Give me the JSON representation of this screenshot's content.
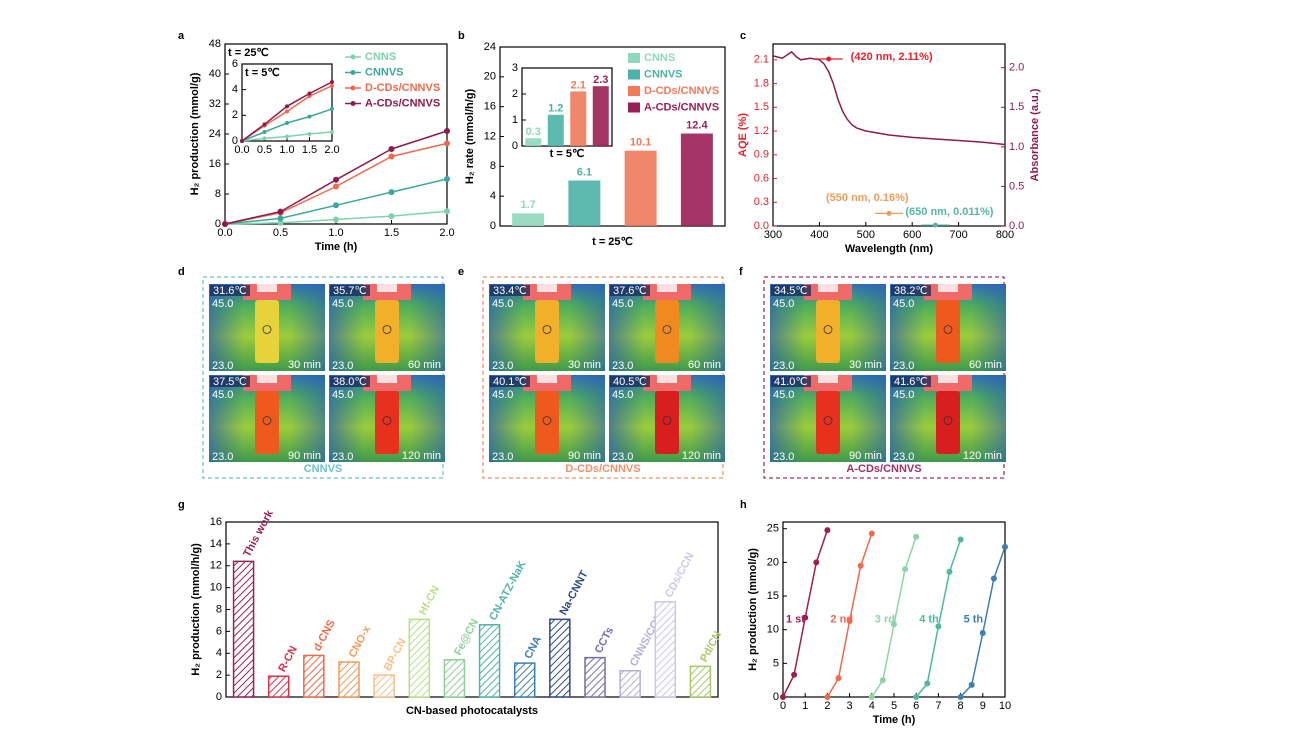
{
  "chart_data": [
    {
      "type": "line",
      "panel_label": "a",
      "annotation": "t = 25℃",
      "xlabel": "Time (h)",
      "ylabel": "H₂ production (mmol/g)",
      "x": [
        0,
        0.5,
        1,
        1.5,
        2
      ],
      "xlim": [
        0,
        2
      ],
      "xticks": [
        {
          "value": 0,
          "label": "0.0"
        },
        0.5,
        {
          "value": 1,
          "label": "1.0"
        },
        1.5,
        {
          "value": 2,
          "label": "2.0"
        }
      ],
      "ylim": [
        0,
        48
      ],
      "yticks": [
        0,
        8,
        16,
        24,
        32,
        40,
        48
      ],
      "legend": "upper right",
      "series": [
        {
          "name": "CNNS",
          "color": "#7dd3ae",
          "values": [
            0,
            0.3,
            1.2,
            2.1,
            3.4
          ]
        },
        {
          "name": "CNNVS",
          "color": "#3aa89a",
          "values": [
            0,
            1.5,
            5,
            8.5,
            12
          ]
        },
        {
          "name": "D-CDs/CNNVS",
          "color": "#ef6a4c",
          "values": [
            0,
            3,
            10,
            18,
            21.5
          ]
        },
        {
          "name": "A-CDs/CNNVS",
          "color": "#8e1b4e",
          "values": [
            0,
            3.3,
            11.8,
            20,
            24.8
          ]
        }
      ],
      "inset": {
        "annotation": "t = 5℃",
        "xlim": [
          0,
          2
        ],
        "xticks": [
          {
            "value": 0,
            "label": "0.0"
          },
          0.5,
          {
            "value": 1,
            "label": "1.0"
          },
          1.5,
          {
            "value": 2,
            "label": "2.0"
          }
        ],
        "ylim": [
          0,
          6
        ],
        "yticks": [
          0,
          2,
          4,
          6
        ],
        "series": [
          {
            "values": [
              0,
              0.2,
              0.35,
              0.55,
              0.7
            ]
          },
          {
            "values": [
              0,
              0.7,
              1.4,
              1.9,
              2.5
            ]
          },
          {
            "values": [
              0,
              1.2,
              2.3,
              3.5,
              4.3
            ]
          },
          {
            "values": [
              0,
              1.3,
              2.7,
              3.7,
              4.6
            ]
          }
        ]
      }
    },
    {
      "type": "bar",
      "panel_label": "b",
      "xlabel": "t = 25℃",
      "ylabel": "H₂ rate (mmol/h/g)",
      "ylim": [
        0,
        24
      ],
      "yticks": [
        0,
        4,
        8,
        12,
        16,
        20,
        24
      ],
      "legend": "upper right",
      "series": [
        {
          "name": "CNNS",
          "color": "#8fd8bd",
          "values": [
            1.7
          ]
        },
        {
          "name": "CNNVS",
          "color": "#4bb3a6",
          "values": [
            6.1
          ]
        },
        {
          "name": "D-CDs/CNNVS",
          "color": "#f07a5a",
          "values": [
            10.1
          ]
        },
        {
          "name": "A-CDs/CNNVS",
          "color": "#9a1f55",
          "values": [
            12.4
          ]
        }
      ],
      "inset": {
        "annotation": "t = 5℃",
        "ylim": [
          0,
          3
        ],
        "yticks": [
          0,
          1,
          2,
          3
        ],
        "values": [
          0.3,
          1.2,
          2.1,
          2.3
        ]
      }
    },
    {
      "type": "line",
      "panel_label": "c",
      "xlabel": "Wavelength (nm)",
      "ylabel": "AQE (%)",
      "y2label": "Absorbance (a.u.)",
      "y_axis_color": "#e8202a",
      "y2_axis_color": "#8e1b4e",
      "xlim": [
        300,
        800
      ],
      "xticks": [
        300,
        400,
        500,
        600,
        700,
        800
      ],
      "ylim": [
        0,
        2.3
      ],
      "yticks": [
        {
          "value": 0,
          "label": "0.0"
        },
        0.3,
        0.6,
        0.9,
        1.2,
        1.5,
        1.8,
        2.1
      ],
      "y2lim": [
        0,
        2.3
      ],
      "y2ticks": [
        {
          "value": 0,
          "label": "0.0"
        },
        0.5,
        {
          "value": 1,
          "label": "1.0"
        },
        1.5,
        {
          "value": 2,
          "label": "2.0"
        }
      ],
      "series": [
        {
          "name": "Absorbance",
          "axis": "y2",
          "color": "#8e1b4e",
          "x": [
            300,
            320,
            340,
            350,
            360,
            380,
            400,
            410,
            420,
            430,
            440,
            450,
            460,
            470,
            480,
            500,
            550,
            600,
            650,
            700,
            750,
            800
          ],
          "values": [
            2.15,
            2.12,
            2.2,
            2.14,
            2.1,
            2.12,
            2.1,
            2.05,
            1.95,
            1.8,
            1.6,
            1.45,
            1.35,
            1.28,
            1.24,
            1.2,
            1.15,
            1.12,
            1.1,
            1.08,
            1.06,
            1.03
          ]
        },
        {
          "name": "AQE",
          "style": "markers",
          "color": "#e8202a",
          "x": [
            420,
            550,
            650
          ],
          "values": [
            2.11,
            0.16,
            0.011
          ],
          "value_labels": [
            "(420 nm, 2.11%)",
            "(550 nm, 0.16%)",
            "(650 nm, 0.011%)"
          ],
          "colors": [
            "#e8202a",
            "#f29b57",
            "#56b4a9"
          ]
        }
      ]
    },
    {
      "type": "bar",
      "panel_label": "g",
      "xlabel": "CN-based photocatalysts",
      "ylabel": "H₂ production (mmol/h/g)",
      "ylim": [
        0,
        16
      ],
      "yticks": [
        0,
        2,
        4,
        6,
        8,
        10,
        12,
        14,
        16
      ],
      "hatch": true,
      "categories": [
        "This work",
        "R-CN",
        "d-CNS",
        "CNO-x",
        "BP-CN",
        "Hf-CN",
        "Fe@CN",
        "CN-ATZ-NaK",
        "CNA",
        "Na-CNNT",
        "CCTs",
        "CNNS/CQDs",
        "CDs/CCN",
        "Pd/CN"
      ],
      "values": [
        12.4,
        1.9,
        3.8,
        3.2,
        2.0,
        7.1,
        3.4,
        6.6,
        3.1,
        7.1,
        3.6,
        2.4,
        8.7,
        2.8
      ],
      "colors": [
        "#9b1f52",
        "#d8324a",
        "#ee6a48",
        "#f39a5a",
        "#f6c08a",
        "#b9e08a",
        "#8fcf9a",
        "#4fb3a6",
        "#3d7fb0",
        "#2f4a8a",
        "#7a6bb0",
        "#b9aed6",
        "#cfc6e6",
        "#a8c66a"
      ]
    },
    {
      "type": "line",
      "panel_label": "h",
      "xlabel": "Time (h)",
      "ylabel": "H₂ production (mmol/g)",
      "series_labels": "inline",
      "xlim": [
        0,
        10
      ],
      "xticks": [
        0,
        1,
        2,
        3,
        4,
        5,
        6,
        7,
        8,
        9,
        10
      ],
      "ylim": [
        0,
        26
      ],
      "yticks": [
        0,
        5,
        10,
        15,
        20,
        25
      ],
      "series": [
        {
          "name": "1 st",
          "color": "#9b1f52",
          "x": [
            0,
            0.5,
            1,
            1.5,
            2
          ],
          "values": [
            0,
            3.3,
            11.8,
            20,
            24.8
          ]
        },
        {
          "name": "2 nd",
          "color": "#ee6a48",
          "x": [
            2,
            2.5,
            3,
            3.5,
            4
          ],
          "values": [
            0,
            2.8,
            11.3,
            19.5,
            24.3
          ]
        },
        {
          "name": "3 rd",
          "color": "#8fd4a8",
          "x": [
            4,
            4.5,
            5,
            5.5,
            6
          ],
          "values": [
            0,
            2.5,
            10.8,
            19,
            23.8
          ]
        },
        {
          "name": "4 th",
          "color": "#4fb8a0",
          "x": [
            6,
            6.5,
            7,
            7.5,
            8
          ],
          "values": [
            0,
            2,
            10.5,
            18.6,
            23.4
          ]
        },
        {
          "name": "5 th",
          "color": "#3d7fb0",
          "x": [
            8,
            8.5,
            9,
            9.5,
            10
          ],
          "values": [
            0,
            1.8,
            9.5,
            17.6,
            22.3
          ]
        }
      ]
    }
  ],
  "thermal_panels": [
    {
      "panel_label": "d",
      "label": "CNNVS",
      "frame_color": "#6bbfd0",
      "scale_max": "45.0",
      "scale_min": "23.0",
      "images": [
        {
          "temperature": "31.6℃",
          "time": "30 min"
        },
        {
          "temperature": "35.7℃",
          "time": "60 min"
        },
        {
          "temperature": "37.5℃",
          "time": "90 min"
        },
        {
          "temperature": "38.0℃",
          "time": "120 min"
        }
      ]
    },
    {
      "panel_label": "e",
      "label": "D-CDs/CNNVS",
      "frame_color": "#f0906a",
      "scale_max": "45.0",
      "scale_min": "23.0",
      "images": [
        {
          "temperature": "33.4℃",
          "time": "30 min"
        },
        {
          "temperature": "37.6℃",
          "time": "60 min"
        },
        {
          "temperature": "40.1℃",
          "time": "90 min"
        },
        {
          "temperature": "40.5℃",
          "time": "120 min"
        }
      ]
    },
    {
      "panel_label": "f",
      "label": "A-CDs/CNNVS",
      "frame_color": "#a0306a",
      "scale_max": "45.0",
      "scale_min": "23.0",
      "images": [
        {
          "temperature": "34.5℃",
          "time": "30 min"
        },
        {
          "temperature": "38.2℃",
          "time": "60 min"
        },
        {
          "temperature": "41.0℃",
          "time": "90 min"
        },
        {
          "temperature": "41.6℃",
          "time": "120 min"
        }
      ]
    }
  ]
}
